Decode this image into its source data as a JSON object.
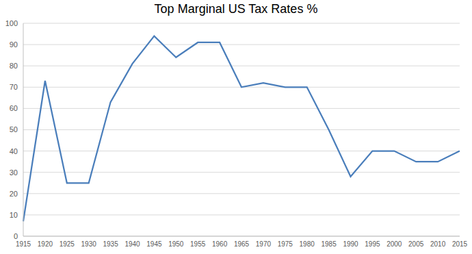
{
  "chart_data": {
    "type": "line",
    "title": "Top Marginal US Tax Rates %",
    "categories": [
      "1915",
      "1920",
      "1925",
      "1930",
      "1935",
      "1940",
      "1945",
      "1950",
      "1955",
      "1960",
      "1965",
      "1970",
      "1975",
      "1980",
      "1985",
      "1990",
      "1995",
      "2000",
      "2005",
      "2010",
      "2015"
    ],
    "values": [
      7,
      73,
      25,
      25,
      63,
      81,
      94,
      84,
      91,
      91,
      70,
      72,
      70,
      70,
      50,
      28,
      40,
      40,
      35,
      35,
      40
    ],
    "color": "#4a7ebb",
    "ylim": [
      0,
      100
    ],
    "yticks": [
      0,
      10,
      20,
      30,
      40,
      50,
      60,
      70,
      80,
      90,
      100
    ],
    "grid": true,
    "marker": "none"
  }
}
